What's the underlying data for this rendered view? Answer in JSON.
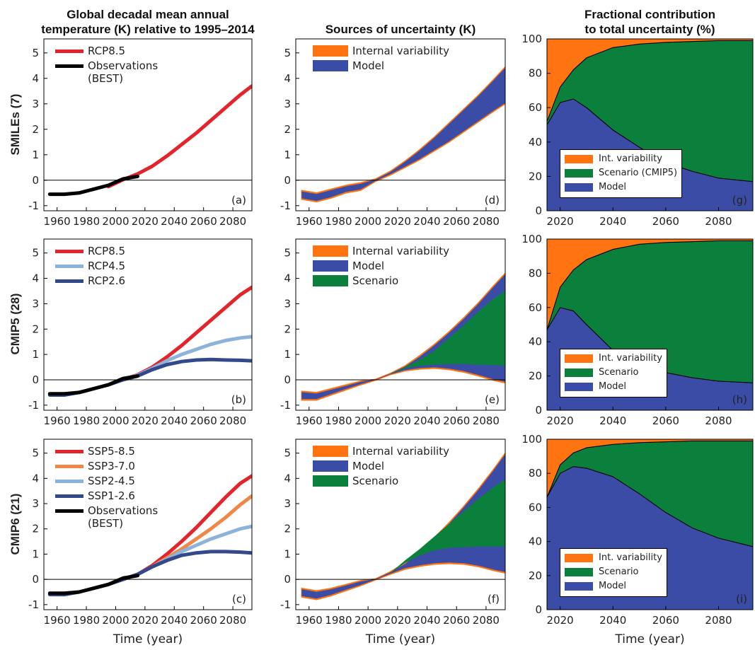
{
  "chart_data": [
    {
      "type": "line",
      "title": "Global decadal mean annual\ntemperature (K) relative to 1995–2014",
      "row_label": "SMILEs (7)",
      "panel_label": "(a)",
      "x": [
        1955,
        1965,
        1975,
        1985,
        1995,
        2005,
        2015,
        2025,
        2035,
        2045,
        2055,
        2065,
        2075,
        2085,
        2093
      ],
      "xlim": [
        1951,
        2093
      ],
      "xticks": [
        1960,
        1980,
        2000,
        2020,
        2040,
        2060,
        2080
      ],
      "ylim": [
        -1.2,
        5.55
      ],
      "yticks": [
        -1,
        0,
        1,
        2,
        3,
        4,
        5
      ],
      "zero_line": true,
      "legend": "upper left",
      "series": [
        {
          "name": "RCP8.5",
          "color": "#e3242b",
          "values": [
            null,
            null,
            null,
            null,
            -0.25,
            0.02,
            0.25,
            0.55,
            0.95,
            1.4,
            1.85,
            2.35,
            2.85,
            3.35,
            3.7
          ]
        },
        {
          "name": "Observations\n(BEST)",
          "color": "#000000",
          "values": [
            -0.55,
            -0.55,
            -0.5,
            -0.35,
            -0.2,
            0.05,
            0.15,
            null,
            null,
            null,
            null,
            null,
            null,
            null,
            null
          ]
        }
      ]
    },
    {
      "type": "band",
      "title": "Sources of uncertainty (K)",
      "panel_label": "(d)",
      "x": [
        1955,
        1965,
        1975,
        1985,
        1995,
        2005,
        2015,
        2025,
        2035,
        2045,
        2055,
        2065,
        2075,
        2085,
        2093
      ],
      "xlim": [
        1951,
        2093
      ],
      "xticks": [
        1960,
        1980,
        2000,
        2020,
        2040,
        2060,
        2080
      ],
      "ylim": [
        -1.2,
        5.55
      ],
      "yticks": [
        -1,
        0,
        1,
        2,
        3,
        4,
        5
      ],
      "zero_line": true,
      "legend": "upper left",
      "series": [
        {
          "name": "Internal variability",
          "color": "#ff7410",
          "lower": [
            -0.75,
            -0.85,
            -0.7,
            -0.5,
            -0.4,
            -0.05,
            0.2,
            0.5,
            0.8,
            1.15,
            1.5,
            1.9,
            2.3,
            2.7,
            3.0
          ],
          "upper": [
            -0.4,
            -0.5,
            -0.35,
            -0.2,
            -0.1,
            0.05,
            0.35,
            0.75,
            1.2,
            1.7,
            2.25,
            2.8,
            3.35,
            3.95,
            4.45
          ]
        },
        {
          "name": "Model",
          "color": "#3a4ca5",
          "lower": [
            -0.71,
            -0.81,
            -0.66,
            -0.46,
            -0.36,
            -0.03,
            0.23,
            0.53,
            0.83,
            1.18,
            1.53,
            1.93,
            2.33,
            2.73,
            3.03
          ],
          "upper": [
            -0.44,
            -0.54,
            -0.39,
            -0.24,
            -0.14,
            0.03,
            0.32,
            0.72,
            1.17,
            1.67,
            2.22,
            2.77,
            3.32,
            3.92,
            4.42
          ]
        }
      ]
    },
    {
      "type": "area",
      "title": "Fractional contribution\nto total uncertainty (%)",
      "panel_label": "(g)",
      "x": [
        2015,
        2020,
        2025,
        2030,
        2040,
        2050,
        2060,
        2070,
        2080,
        2093
      ],
      "xlim": [
        2015,
        2093
      ],
      "xticks": [
        2020,
        2040,
        2060,
        2080
      ],
      "ylim": [
        0,
        100
      ],
      "yticks": [
        0,
        20,
        40,
        60,
        80,
        100
      ],
      "legend": "lower left",
      "series": [
        {
          "name": "Int. variability",
          "color": "#ff7410",
          "values": [
            48,
            28,
            18,
            11,
            5,
            3,
            2,
            1.5,
            1,
            1
          ]
        },
        {
          "name": "Scenario (CMIP5)",
          "color": "#0b7f3c",
          "values": [
            2,
            9,
            17,
            29,
            48,
            60,
            70,
            75.5,
            80,
            82
          ]
        },
        {
          "name": "Model",
          "color": "#3a4ca5",
          "values": [
            50,
            63,
            65,
            60,
            47,
            37,
            28,
            23,
            19,
            17
          ]
        }
      ]
    },
    {
      "type": "line",
      "row_label": "CMIP5 (28)",
      "panel_label": "(b)",
      "x": [
        1955,
        1965,
        1975,
        1985,
        1995,
        2005,
        2015,
        2025,
        2035,
        2045,
        2055,
        2065,
        2075,
        2085,
        2093
      ],
      "xlim": [
        1951,
        2093
      ],
      "xticks": [
        1960,
        1980,
        2000,
        2020,
        2040,
        2060,
        2080
      ],
      "ylim": [
        -1.2,
        5.55
      ],
      "yticks": [
        -1,
        0,
        1,
        2,
        3,
        4,
        5
      ],
      "zero_line": true,
      "legend": "upper left",
      "series": [
        {
          "name": "RCP8.5",
          "color": "#e3242b",
          "values": [
            null,
            null,
            null,
            null,
            null,
            0,
            0.2,
            0.5,
            0.9,
            1.35,
            1.85,
            2.35,
            2.85,
            3.35,
            3.65
          ]
        },
        {
          "name": "RCP4.5",
          "color": "#8db3da",
          "values": [
            null,
            null,
            null,
            null,
            null,
            0,
            0.18,
            0.45,
            0.75,
            1.0,
            1.2,
            1.4,
            1.55,
            1.65,
            1.7
          ]
        },
        {
          "name": "RCP2.6",
          "color": "#34488c",
          "values": [
            -0.6,
            -0.6,
            -0.5,
            -0.35,
            -0.2,
            0,
            0.15,
            0.4,
            0.6,
            0.72,
            0.78,
            0.8,
            0.78,
            0.77,
            0.75
          ]
        },
        {
          "color": "#000000",
          "values": [
            -0.55,
            -0.55,
            -0.5,
            -0.35,
            -0.2,
            0.05,
            0.15,
            null,
            null,
            null,
            null,
            null,
            null,
            null,
            null
          ]
        }
      ]
    },
    {
      "type": "band",
      "panel_label": "(e)",
      "x": [
        1955,
        1965,
        1975,
        1985,
        1995,
        2005,
        2015,
        2025,
        2035,
        2045,
        2055,
        2065,
        2075,
        2085,
        2093
      ],
      "xlim": [
        1951,
        2093
      ],
      "xticks": [
        1960,
        1980,
        2000,
        2020,
        2040,
        2060,
        2080
      ],
      "ylim": [
        -1.2,
        5.55
      ],
      "yticks": [
        -1,
        0,
        1,
        2,
        3,
        4,
        5
      ],
      "zero_line": true,
      "legend": "upper left",
      "series": [
        {
          "name": "Internal variability",
          "color": "#ff7410",
          "lower": [
            -0.8,
            -0.8,
            -0.6,
            -0.4,
            -0.2,
            -0.02,
            0.2,
            0.35,
            0.42,
            0.45,
            0.4,
            0.3,
            0.15,
            -0.02,
            -0.12
          ],
          "upper": [
            -0.45,
            -0.5,
            -0.35,
            -0.2,
            -0.05,
            0.02,
            0.25,
            0.55,
            0.95,
            1.4,
            1.9,
            2.45,
            3.05,
            3.7,
            4.2
          ]
        },
        {
          "name": "Model",
          "color": "#3a4ca5",
          "lower": [
            -0.76,
            -0.76,
            -0.56,
            -0.36,
            -0.17,
            -0.01,
            0.21,
            0.38,
            0.46,
            0.49,
            0.44,
            0.34,
            0.19,
            0.02,
            -0.08
          ],
          "upper": [
            -0.49,
            -0.54,
            -0.39,
            -0.24,
            -0.08,
            0.01,
            0.24,
            0.52,
            0.91,
            1.36,
            1.86,
            2.41,
            3.01,
            3.66,
            4.16
          ]
        },
        {
          "name": "Scenario",
          "color": "#0b7f3c",
          "lower": [
            null,
            null,
            null,
            null,
            null,
            null,
            0.22,
            0.45,
            0.55,
            0.6,
            0.62,
            0.62,
            0.6,
            0.58,
            0.55
          ],
          "upper": [
            null,
            null,
            null,
            null,
            null,
            null,
            0.23,
            0.5,
            0.78,
            1.15,
            1.65,
            2.15,
            2.7,
            3.2,
            3.5
          ]
        }
      ]
    },
    {
      "type": "area",
      "panel_label": "(h)",
      "x": [
        2015,
        2020,
        2025,
        2030,
        2040,
        2050,
        2060,
        2070,
        2080,
        2093
      ],
      "xlim": [
        2015,
        2093
      ],
      "xticks": [
        2020,
        2040,
        2060,
        2080
      ],
      "ylim": [
        0,
        100
      ],
      "yticks": [
        0,
        20,
        40,
        60,
        80,
        100
      ],
      "legend": "lower left",
      "series": [
        {
          "name": "Int. variability",
          "color": "#ff7410",
          "values": [
            53,
            28,
            18,
            12,
            6,
            3,
            2,
            1.5,
            1,
            1
          ]
        },
        {
          "name": "Scenario",
          "color": "#0b7f3c",
          "values": [
            0,
            12,
            24,
            38,
            59,
            70,
            76,
            79.5,
            82,
            83
          ]
        },
        {
          "name": "Model",
          "color": "#3a4ca5",
          "values": [
            47,
            60,
            58,
            50,
            35,
            27,
            22,
            19,
            17,
            16
          ]
        }
      ]
    },
    {
      "type": "line",
      "row_label": "CMIP6 (21)",
      "panel_label": "(c)",
      "xlabel": "Time (year)",
      "x": [
        1955,
        1965,
        1975,
        1985,
        1995,
        2005,
        2015,
        2025,
        2035,
        2045,
        2055,
        2065,
        2075,
        2085,
        2093
      ],
      "xlim": [
        1951,
        2093
      ],
      "xticks": [
        1960,
        1980,
        2000,
        2020,
        2040,
        2060,
        2080
      ],
      "ylim": [
        -1.2,
        5.55
      ],
      "yticks": [
        -1,
        0,
        1,
        2,
        3,
        4,
        5
      ],
      "zero_line": true,
      "legend": "upper left",
      "series": [
        {
          "name": "SSP5-8.5",
          "color": "#e3242b",
          "values": [
            null,
            null,
            null,
            null,
            null,
            0,
            0.2,
            0.55,
            1.0,
            1.5,
            2.05,
            2.65,
            3.25,
            3.8,
            4.1
          ]
        },
        {
          "name": "SSP3-7.0",
          "color": "#ef8748",
          "values": [
            null,
            null,
            null,
            null,
            null,
            0,
            0.2,
            0.5,
            0.85,
            1.2,
            1.6,
            2.0,
            2.45,
            2.95,
            3.3
          ]
        },
        {
          "name": "SSP2-4.5",
          "color": "#8db3da",
          "values": [
            null,
            null,
            null,
            null,
            null,
            0,
            0.2,
            0.5,
            0.8,
            1.1,
            1.35,
            1.6,
            1.8,
            2.0,
            2.1
          ]
        },
        {
          "name": "SSP1-2.6",
          "color": "#34488c",
          "values": [
            -0.6,
            -0.6,
            -0.5,
            -0.35,
            -0.2,
            0,
            0.2,
            0.5,
            0.75,
            0.95,
            1.05,
            1.1,
            1.1,
            1.08,
            1.05
          ]
        },
        {
          "name": "Observations\n(BEST)",
          "color": "#000000",
          "values": [
            -0.55,
            -0.55,
            -0.5,
            -0.35,
            -0.2,
            0.05,
            0.15,
            null,
            null,
            null,
            null,
            null,
            null,
            null,
            null
          ]
        }
      ]
    },
    {
      "type": "band",
      "panel_label": "(f)",
      "xlabel": "Time (year)",
      "x": [
        1955,
        1965,
        1975,
        1985,
        1995,
        2005,
        2015,
        2025,
        2035,
        2045,
        2055,
        2065,
        2075,
        2085,
        2093
      ],
      "xlim": [
        1951,
        2093
      ],
      "xticks": [
        1960,
        1980,
        2000,
        2020,
        2040,
        2060,
        2080
      ],
      "ylim": [
        -1.2,
        5.55
      ],
      "yticks": [
        -1,
        0,
        1,
        2,
        3,
        4,
        5
      ],
      "zero_line": true,
      "legend": "upper left",
      "series": [
        {
          "name": "Internal variability",
          "color": "#ff7410",
          "lower": [
            -0.7,
            -0.8,
            -0.65,
            -0.45,
            -0.25,
            -0.02,
            0.2,
            0.4,
            0.52,
            0.6,
            0.63,
            0.6,
            0.5,
            0.35,
            0.25
          ],
          "upper": [
            -0.35,
            -0.45,
            -0.35,
            -0.2,
            -0.05,
            0.02,
            0.3,
            0.65,
            1.1,
            1.65,
            2.25,
            2.9,
            3.6,
            4.35,
            5.0
          ]
        },
        {
          "name": "Model",
          "color": "#3a4ca5",
          "lower": [
            -0.66,
            -0.76,
            -0.61,
            -0.41,
            -0.22,
            -0.01,
            0.22,
            0.44,
            0.56,
            0.64,
            0.67,
            0.64,
            0.54,
            0.39,
            0.29
          ],
          "upper": [
            -0.39,
            -0.49,
            -0.39,
            -0.24,
            -0.08,
            0.01,
            0.28,
            0.61,
            1.06,
            1.61,
            2.21,
            2.86,
            3.56,
            4.31,
            4.96
          ]
        },
        {
          "name": "Scenario",
          "color": "#0b7f3c",
          "lower": [
            null,
            null,
            null,
            null,
            null,
            null,
            0.23,
            0.65,
            0.95,
            1.15,
            1.25,
            1.28,
            1.3,
            1.3,
            1.3
          ],
          "upper": [
            null,
            null,
            null,
            null,
            null,
            null,
            0.25,
            0.75,
            1.2,
            1.7,
            2.2,
            2.7,
            3.2,
            3.65,
            3.95
          ]
        }
      ]
    },
    {
      "type": "area",
      "panel_label": "(i)",
      "xlabel": "Time (year)",
      "x": [
        2015,
        2020,
        2025,
        2030,
        2040,
        2050,
        2060,
        2070,
        2080,
        2093
      ],
      "xlim": [
        2015,
        2093
      ],
      "xticks": [
        2020,
        2040,
        2060,
        2080
      ],
      "ylim": [
        0,
        100
      ],
      "yticks": [
        0,
        20,
        40,
        60,
        80,
        100
      ],
      "legend": "lower left",
      "series": [
        {
          "name": "Int. variability",
          "color": "#ff7410",
          "values": [
            34,
            15,
            8,
            5,
            3,
            2,
            1.5,
            1,
            1,
            1
          ]
        },
        {
          "name": "Scenario",
          "color": "#0b7f3c",
          "values": [
            0,
            5,
            8,
            12,
            19,
            30,
            41.5,
            51,
            57,
            62
          ]
        },
        {
          "name": "Model",
          "color": "#3a4ca5",
          "values": [
            66,
            80,
            84,
            83,
            78,
            68,
            57,
            48,
            42,
            37
          ]
        }
      ]
    }
  ]
}
